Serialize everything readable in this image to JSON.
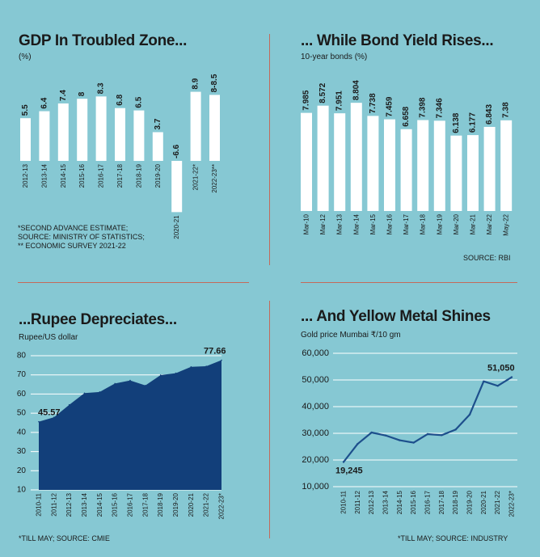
{
  "colors": {
    "background": "#86c8d3",
    "bar": "#ffffff",
    "area": "#123f7a",
    "line": "#1d4f8c",
    "divider": "#c46a5a"
  },
  "panels": {
    "gdp": {
      "title": "GDP In Troubled Zone...",
      "subtitle": "(%)",
      "notes": [
        "*SECOND ADVANCE ESTIMATE;",
        "SOURCE: MINISTRY OF STATISTICS;",
        "** ECONOMIC SURVEY 2021-22"
      ]
    },
    "bond": {
      "title": "... While Bond Yield Rises...",
      "subtitle": "10-year bonds (%)",
      "source": "SOURCE: RBI"
    },
    "rupee": {
      "title": "...Rupee Depreciates...",
      "subtitle": "Rupee/US dollar",
      "source": "*TILL MAY;  SOURCE: CMIE"
    },
    "gold": {
      "title": "... And Yellow Metal Shines",
      "subtitle": "Gold price Mumbai ₹/10 gm",
      "source": "*TILL MAY;  SOURCE: INDUSTRY"
    }
  },
  "chart_data": [
    {
      "id": "gdp",
      "type": "bar",
      "categories": [
        "2012-13",
        "2013-14",
        "2014-15",
        "2015-16",
        "2016-17",
        "2017-18",
        "2018-19",
        "2019-20",
        "2020-21",
        "2021-22*",
        "2022-23**"
      ],
      "values": [
        5.5,
        6.4,
        7.4,
        8,
        8.3,
        6.8,
        6.5,
        3.7,
        -6.6,
        8.9,
        8.5
      ],
      "labels": [
        "5.5",
        "6.4",
        "7.4",
        "8",
        "8.3",
        "6.8",
        "6.5",
        "3.7",
        "-6.6",
        "8.9",
        "8-8.5"
      ],
      "ylim": [
        -6.6,
        8.9
      ],
      "grid": false
    },
    {
      "id": "bond",
      "type": "bar",
      "categories": [
        "Mar-10",
        "Mar-12",
        "Mar-13",
        "Mar-14",
        "Mar-15",
        "Mar-16",
        "Mar-17",
        "Mar-18",
        "Mar-19",
        "Mar-20",
        "Mar-21",
        "Mar-22",
        "May-22"
      ],
      "values": [
        7.985,
        8.572,
        7.951,
        8.804,
        7.738,
        7.459,
        6.658,
        7.398,
        7.346,
        6.138,
        6.177,
        6.843,
        7.38
      ],
      "labels": [
        "7.985",
        "8.572",
        "7.951",
        "8.804",
        "7.738",
        "7.459",
        "6.658",
        "7.398",
        "7.346",
        "6.138",
        "6.177",
        "6.843",
        "7.38"
      ],
      "ylim": [
        0,
        8.804
      ],
      "grid": false
    },
    {
      "id": "rupee",
      "type": "area",
      "categories": [
        "2010-11",
        "2011-12",
        "2012-13",
        "2013-14",
        "2014-15",
        "2015-16",
        "2016-17",
        "2017-18",
        "2018-19",
        "2019-20",
        "2020-21",
        "2021-22",
        "2022-23*"
      ],
      "values": [
        45.57,
        47.9,
        54.4,
        60.5,
        61.1,
        65.5,
        67.1,
        64.5,
        69.9,
        70.9,
        74.2,
        74.5,
        77.66
      ],
      "annotations": [
        {
          "index": 0,
          "text": "45.57"
        },
        {
          "index": 12,
          "text": "77.66"
        }
      ],
      "yticks": [
        10,
        20,
        30,
        40,
        50,
        60,
        70,
        80
      ],
      "ytick_labels": [
        "10",
        "20",
        "30",
        "40",
        "50",
        "60",
        "70",
        "80"
      ],
      "ylim": [
        10,
        80
      ],
      "grid": true
    },
    {
      "id": "gold",
      "type": "line",
      "categories": [
        "2010-11",
        "2011-12",
        "2012-13",
        "2013-14",
        "2014-15",
        "2015-16",
        "2016-17",
        "2017-18",
        "2018-19",
        "2019-20",
        "2020-21",
        "2021-22",
        "2022-23*"
      ],
      "values": [
        19245,
        26000,
        30300,
        29200,
        27400,
        26500,
        29700,
        29300,
        31400,
        37000,
        49500,
        47800,
        51050
      ],
      "annotations": [
        {
          "index": 0,
          "text": "19,245"
        },
        {
          "index": 12,
          "text": "51,050"
        }
      ],
      "yticks": [
        10000,
        20000,
        30000,
        40000,
        50000,
        60000
      ],
      "ytick_labels": [
        "10,000",
        "20,000",
        "30,000",
        "40,000",
        "50,000",
        "60,000"
      ],
      "ylim": [
        10000,
        60000
      ],
      "grid": true
    }
  ]
}
